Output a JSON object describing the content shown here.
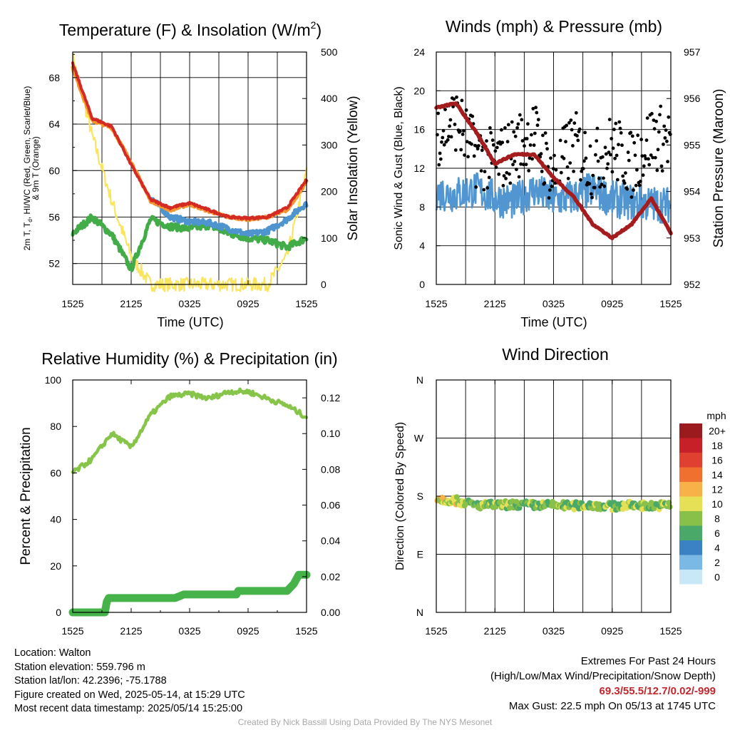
{
  "time_ticks": [
    "1525",
    "2125",
    "0325",
    "0925",
    "1525"
  ],
  "panels": {
    "temperature": {
      "title": "Temperature (F) & Insolation (W/m",
      "title_sup": "2",
      "title_end": ")",
      "ylabel_left_line1": "2m T, T",
      "ylabel_left_sub": "d",
      "ylabel_left_rest": ", HI/WC (Red, Green, Scarlet/Blue)",
      "ylabel_left_line2": "& 9m T (Orange)",
      "ylabel_right": "Solar Insolation (Yellow)",
      "xlabel": "Time (UTC)",
      "left_ticks": [
        "52",
        "56",
        "60",
        "64",
        "68"
      ],
      "right_ticks": [
        "0",
        "100",
        "200",
        "300",
        "400",
        "500"
      ]
    },
    "winds": {
      "title": "Winds (mph) & Pressure (mb)",
      "ylabel_left": "Sonic Wind & Gust (Blue, Black)",
      "ylabel_right": "Station Pressure (Maroon)",
      "xlabel": "Time (UTC)",
      "left_ticks": [
        "0",
        "4",
        "8",
        "12",
        "16",
        "20",
        "24"
      ],
      "right_ticks": [
        "952",
        "953",
        "954",
        "955",
        "956",
        "957"
      ]
    },
    "humidity": {
      "title": "Relative Humidity (%) & Precipitation (in)",
      "ylabel_left": "Percent & Precipitation",
      "left_ticks": [
        "0",
        "20",
        "40",
        "60",
        "80",
        "100"
      ],
      "right_ticks": [
        "0.00",
        "0.02",
        "0.04",
        "0.06",
        "0.08",
        "0.10",
        "0.12"
      ]
    },
    "direction": {
      "title": "Wind Direction",
      "ylabel_left": "Direction (Colored By Speed)",
      "left_ticks": [
        "N",
        "E",
        "S",
        "W",
        "N"
      ]
    }
  },
  "legend": {
    "title": "mph",
    "labels": [
      "0",
      "2",
      "4",
      "6",
      "8",
      "10",
      "12",
      "14",
      "16",
      "18",
      "20+"
    ],
    "colors": [
      "#c8e8f8",
      "#7ab8e6",
      "#3a82c4",
      "#4aa868",
      "#88c04a",
      "#e6e056",
      "#f8b048",
      "#f07030",
      "#e04030",
      "#c82028",
      "#9a1a1e"
    ]
  },
  "footer": {
    "location": "Location: Walton",
    "elevation": "Station elevation: 559.796 m",
    "latlon": "Station lat/lon: 42.2396; -75.1788",
    "created": "Figure created on Wed, 2025-05-14, at 15:29 UTC",
    "recent": "Most recent data timestamp: 2025/05/14 15:25:00",
    "extremes_title": "Extremes For Past 24 Hours",
    "extremes_sub": "(High/Low/Max Wind/Precipitation/Snow Depth)",
    "extremes_values": "69.3/55.5/12.7/0.02/-999",
    "max_gust": "Max Gust: 22.5 mph On 05/13 at 1745 UTC",
    "credit": "Created By Nick Bassill Using Data Provided By The NYS Mesonet"
  },
  "chart_data": [
    {
      "type": "line",
      "title": "Temperature (F) & Insolation (W/m2)",
      "xlabel": "Time (UTC)",
      "ylabel": "2m T, Td, HI/WC (Red, Green, Scarlet/Blue) & 9m T (Orange)",
      "ylabel_right": "Solar Insolation (Yellow)",
      "x": [
        0,
        2,
        4,
        6,
        8,
        10,
        12,
        14,
        16,
        18,
        20,
        22,
        24
      ],
      "ylim": [
        50.2,
        70.2
      ],
      "ylim_right": [
        0,
        500
      ],
      "series": [
        {
          "name": "2m T",
          "axis": "left",
          "color": "#d42a24",
          "values": [
            69.2,
            64.5,
            63.8,
            60.5,
            57.5,
            56.8,
            57.2,
            56.6,
            56.0,
            55.9,
            56.0,
            56.8,
            59.2
          ]
        },
        {
          "name": "9m T",
          "axis": "left",
          "color": "#f39531",
          "values": [
            68.8,
            64.3,
            63.7,
            60.7,
            57.4,
            56.6,
            57.1,
            56.5,
            56.0,
            55.8,
            56.0,
            56.6,
            59.0
          ]
        },
        {
          "name": "Td",
          "axis": "left",
          "color": "#41ac48",
          "values": [
            54.6,
            56.0,
            54.5,
            51.5,
            55.8,
            55.2,
            55.0,
            55.3,
            54.6,
            54.2,
            54.0,
            53.4,
            54.2
          ]
        },
        {
          "name": "WC",
          "axis": "left",
          "color": "#4e94cf",
          "values": [
            null,
            null,
            null,
            null,
            57.7,
            56.0,
            55.6,
            55.5,
            55.0,
            54.5,
            54.8,
            55.8,
            57.2
          ]
        },
        {
          "name": "Insolation",
          "axis": "right",
          "color": "#fae561",
          "values": [
            490,
            320,
            180,
            60,
            0,
            0,
            0,
            0,
            0,
            0,
            0,
            60,
            240
          ]
        }
      ]
    },
    {
      "type": "line",
      "title": "Winds (mph) & Pressure (mb)",
      "xlabel": "Time (UTC)",
      "ylabel": "Sonic Wind & Gust (Blue, Black)",
      "ylabel_right": "Station Pressure (Maroon)",
      "x": [
        0,
        2,
        4,
        6,
        8,
        10,
        12,
        14,
        16,
        18,
        20,
        22,
        24
      ],
      "ylim": [
        0,
        24
      ],
      "ylim_right": [
        952,
        957
      ],
      "series": [
        {
          "name": "Sonic Wind",
          "axis": "left",
          "color": "#5195d1",
          "values": [
            9.5,
            9.3,
            9.8,
            8.9,
            8.5,
            9.8,
            8.7,
            9.0,
            9.8,
            8.8,
            8.5,
            8.3,
            8.2
          ]
        },
        {
          "name": "Gust",
          "axis": "left",
          "color": "#000000",
          "style": "points",
          "values": [
            15.6,
            17.1,
            13.5,
            12.5,
            14.1,
            15.6,
            11.0,
            14.7,
            12.3,
            14.3,
            12.3,
            15.2,
            15.0
          ]
        },
        {
          "name": "Station Pressure",
          "axis": "right",
          "color": "#a51c1f",
          "values": [
            955.8,
            955.9,
            955.3,
            954.6,
            954.8,
            954.8,
            954.3,
            953.9,
            953.3,
            953.0,
            953.3,
            953.85,
            953.1
          ]
        }
      ]
    },
    {
      "type": "line",
      "title": "Relative Humidity (%) & Precipitation (in)",
      "ylabel": "Percent & Precipitation",
      "x": [
        0,
        2,
        4,
        6,
        8,
        10,
        12,
        14,
        16,
        18,
        20,
        22,
        24
      ],
      "ylim": [
        0,
        100
      ],
      "ylim_right": [
        0,
        0.13
      ],
      "series": [
        {
          "name": "Relative Humidity",
          "axis": "left",
          "color": "#86c54a",
          "values": [
            60,
            66,
            77,
            71,
            85,
            93,
            94,
            92,
            95,
            95,
            92,
            89,
            84
          ]
        },
        {
          "name": "Precipitation",
          "axis": "right",
          "color": "#45b34a",
          "values": [
            0.0,
            0.0,
            0.0,
            0.008,
            0.008,
            0.008,
            0.01,
            0.011,
            0.012,
            0.012,
            0.013,
            0.013,
            0.022
          ]
        }
      ]
    },
    {
      "type": "scatter",
      "title": "Wind Direction",
      "ylabel": "Direction (Colored By Speed)",
      "y_ticks": [
        "N",
        "E",
        "S",
        "W",
        "N"
      ],
      "ylim": [
        0,
        360
      ],
      "x": [
        0,
        2,
        4,
        6,
        8,
        10,
        12,
        14,
        16,
        18,
        20,
        22,
        24
      ],
      "series": [
        {
          "name": "Wind Direction",
          "values": [
            176,
            173,
            166,
            166,
            167,
            166,
            166,
            165,
            166,
            164,
            166,
            165,
            166
          ]
        }
      ]
    }
  ]
}
